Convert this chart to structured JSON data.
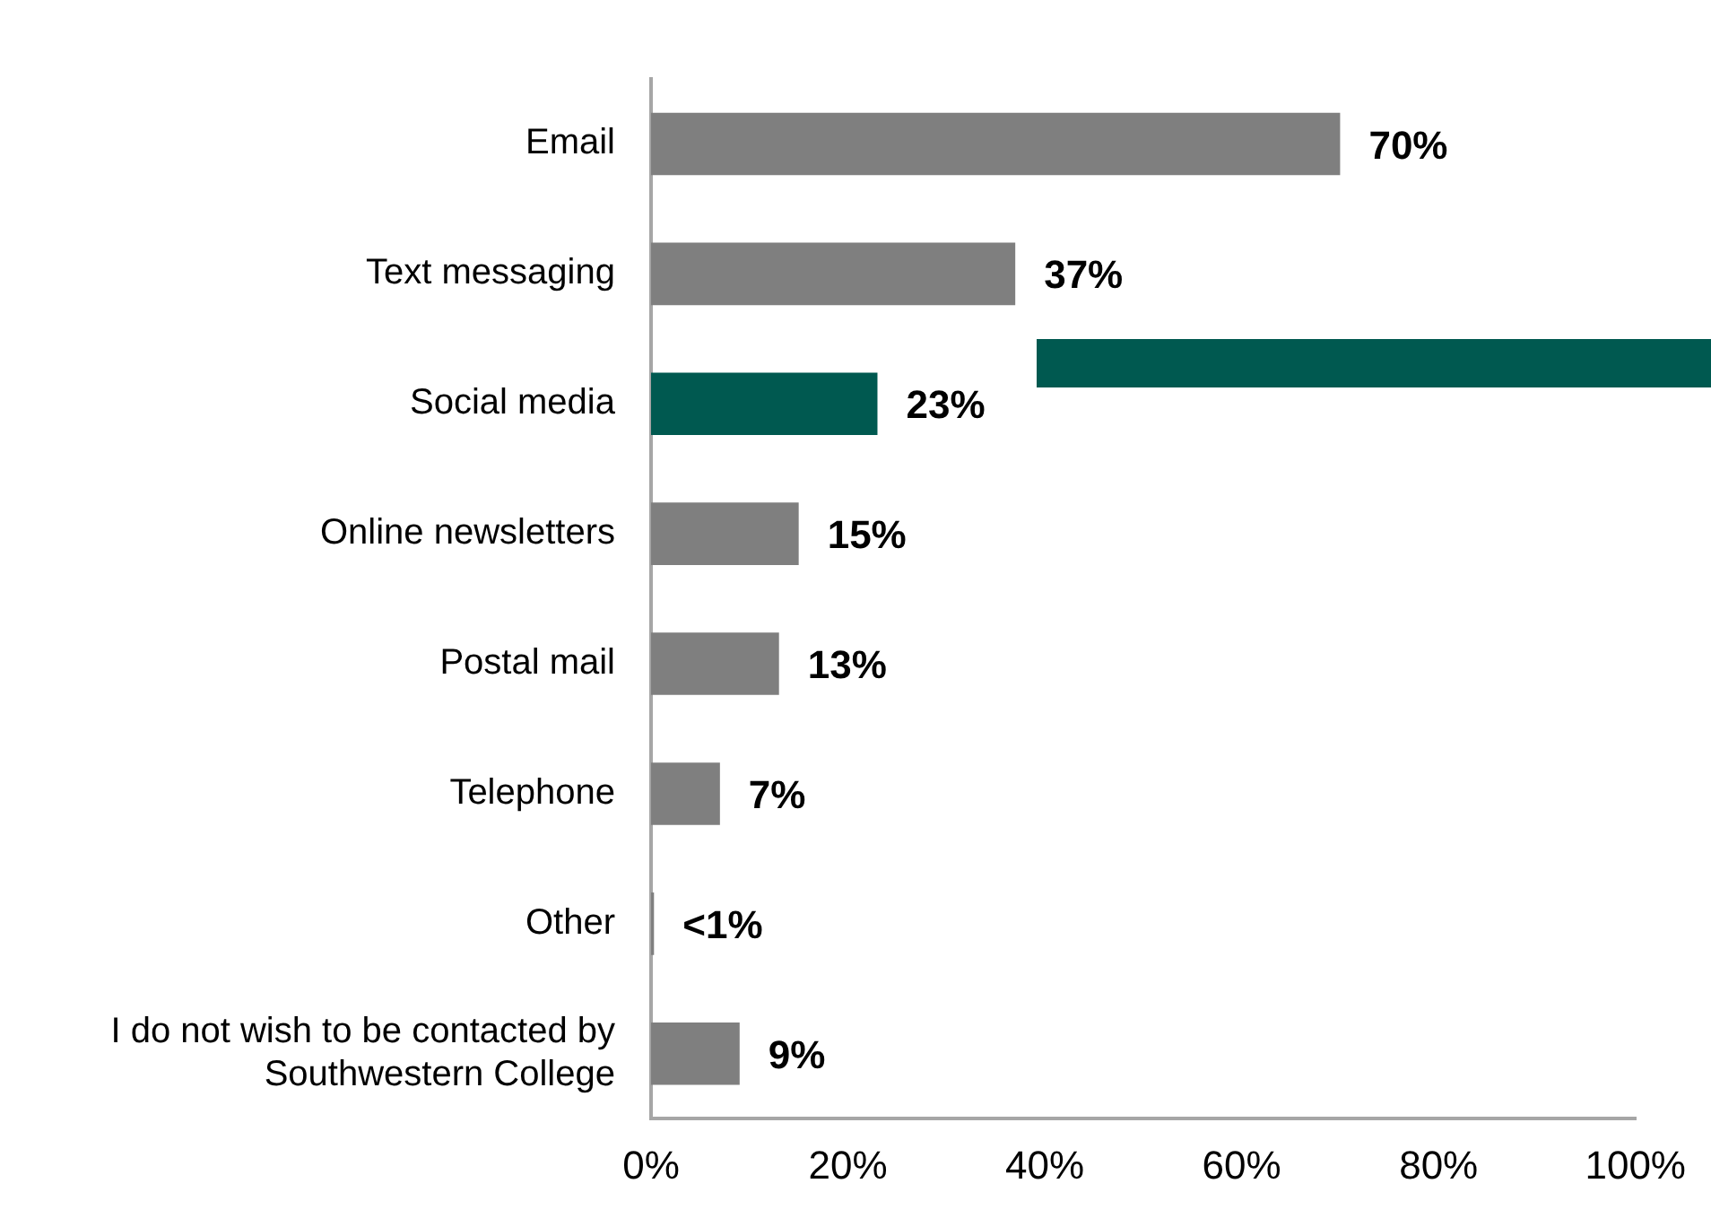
{
  "chart_data": {
    "type": "bar",
    "orientation": "horizontal",
    "categories": [
      "Email",
      "Text messaging",
      "Social media",
      "Online newsletters",
      "Postal mail",
      "Telephone",
      "Other",
      "I do not wish to be contacted by Southwestern College"
    ],
    "values": [
      70,
      37,
      23,
      15,
      13,
      7,
      0.3,
      9
    ],
    "colors": [
      "#7f7f7f",
      "#7f7f7f",
      "#005950",
      "#7f7f7f",
      "#7f7f7f",
      "#7f7f7f",
      "#7f7f7f",
      "#7f7f7f"
    ],
    "value_labels": [
      "70%",
      "37%",
      "23%",
      "15%",
      "13%",
      "7%",
      "<1%",
      "9%"
    ],
    "xlim": [
      0,
      100
    ],
    "xticks": [
      {
        "value": 0,
        "label": "0%"
      },
      {
        "value": 20,
        "label": "20%"
      },
      {
        "value": 40,
        "label": "40%"
      },
      {
        "value": 60,
        "label": "60%"
      },
      {
        "value": 80,
        "label": "80%"
      },
      {
        "value": 100,
        "label": "100%"
      }
    ],
    "grid": false,
    "legend": false
  }
}
